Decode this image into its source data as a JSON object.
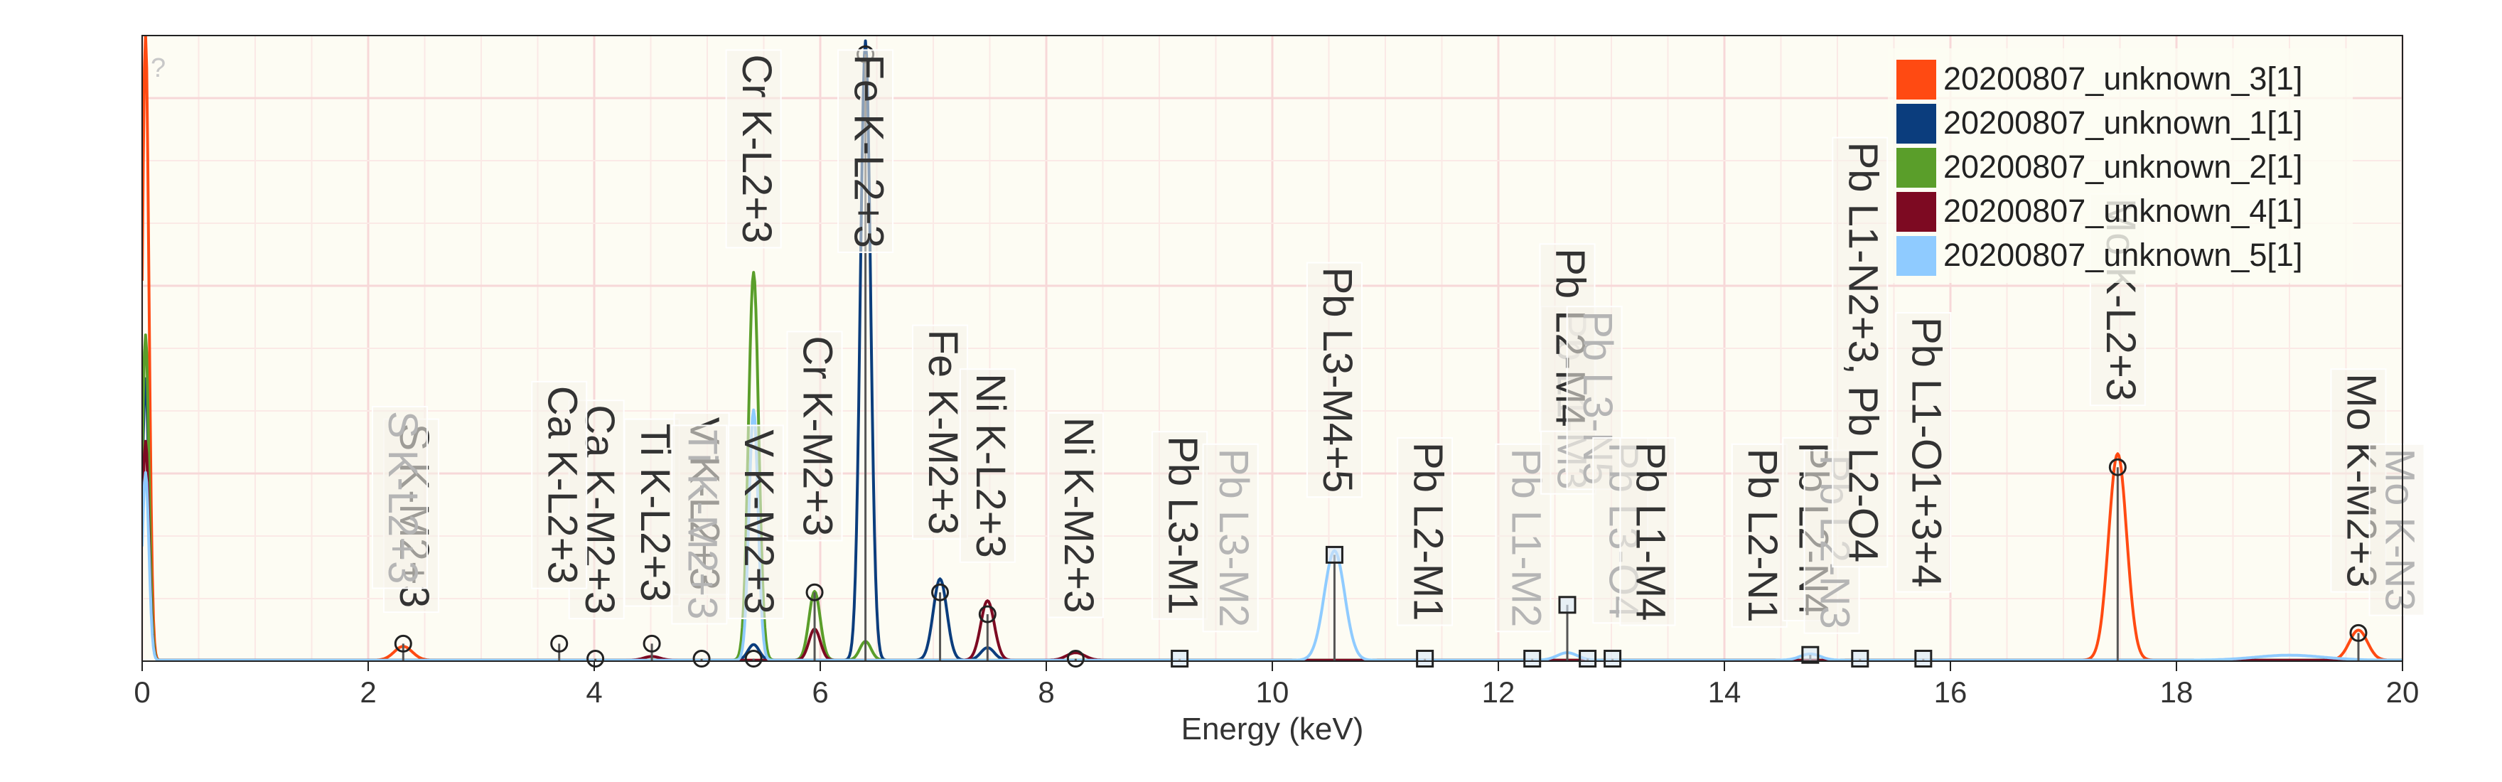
{
  "chart_data": {
    "type": "line",
    "xlabel": "Energy (keV)",
    "ylabel": "",
    "xlim": [
      0,
      20
    ],
    "ylim": [
      0,
      1
    ],
    "x_ticks": [
      0,
      2,
      4,
      6,
      8,
      10,
      12,
      14,
      16,
      18,
      20
    ],
    "grid": true,
    "legend_position": "top-right",
    "help_glyph": "?",
    "series": [
      {
        "name": "20200807_unknown_3[1]",
        "color": "#ff4a12",
        "peaks": [
          {
            "e": 0.03,
            "h": 1.0,
            "w": 0.03
          },
          {
            "e": 2.31,
            "h": 0.022,
            "w": 0.08
          },
          {
            "e": 17.48,
            "h": 0.33,
            "w": 0.08
          },
          {
            "e": 19.61,
            "h": 0.048,
            "w": 0.08
          }
        ]
      },
      {
        "name": "20200807_unknown_1[1]",
        "color": "#0b3d7d",
        "peaks": [
          {
            "e": 0.03,
            "h": 0.45,
            "w": 0.03
          },
          {
            "e": 6.4,
            "h": 0.99,
            "w": 0.045
          },
          {
            "e": 7.06,
            "h": 0.13,
            "w": 0.06
          },
          {
            "e": 7.48,
            "h": 0.02,
            "w": 0.06
          },
          {
            "e": 5.41,
            "h": 0.025,
            "w": 0.05
          }
        ]
      },
      {
        "name": "20200807_unknown_2[1]",
        "color": "#5a9e2a",
        "peaks": [
          {
            "e": 0.03,
            "h": 0.52,
            "w": 0.03
          },
          {
            "e": 5.41,
            "h": 0.62,
            "w": 0.045
          },
          {
            "e": 5.95,
            "h": 0.11,
            "w": 0.05
          },
          {
            "e": 6.4,
            "h": 0.03,
            "w": 0.05
          }
        ]
      },
      {
        "name": "20200807_unknown_4[1]",
        "color": "#7d0a22",
        "peaks": [
          {
            "e": 0.03,
            "h": 0.35,
            "w": 0.03
          },
          {
            "e": 7.48,
            "h": 0.095,
            "w": 0.06
          },
          {
            "e": 8.26,
            "h": 0.012,
            "w": 0.08
          },
          {
            "e": 5.95,
            "h": 0.05,
            "w": 0.05
          },
          {
            "e": 4.51,
            "h": 0.006,
            "w": 0.07
          }
        ]
      },
      {
        "name": "20200807_unknown_5[1]",
        "color": "#8fcbff",
        "peaks": [
          {
            "e": 0.03,
            "h": 0.3,
            "w": 0.03
          },
          {
            "e": 10.55,
            "h": 0.175,
            "w": 0.09
          },
          {
            "e": 12.61,
            "h": 0.012,
            "w": 0.09
          },
          {
            "e": 14.76,
            "h": 0.01,
            "w": 0.09
          },
          {
            "e": 5.41,
            "h": 0.4,
            "w": 0.04
          },
          {
            "e": 19.0,
            "h": 0.008,
            "w": 0.3
          }
        ]
      }
    ],
    "markers": [
      {
        "e": 2.31,
        "y": 0.028,
        "shape": "circle"
      },
      {
        "e": 3.69,
        "y": 0.028,
        "shape": "circle"
      },
      {
        "e": 4.01,
        "y": 0.004,
        "shape": "circle"
      },
      {
        "e": 4.51,
        "y": 0.028,
        "shape": "circle"
      },
      {
        "e": 4.95,
        "y": 0.004,
        "shape": "circle"
      },
      {
        "e": 5.41,
        "y": 0.004,
        "shape": "circle"
      },
      {
        "e": 5.95,
        "y": 0.11,
        "shape": "circle"
      },
      {
        "e": 6.4,
        "y": 0.97,
        "shape": "circle"
      },
      {
        "e": 7.06,
        "y": 0.11,
        "shape": "circle"
      },
      {
        "e": 7.48,
        "y": 0.075,
        "shape": "circle"
      },
      {
        "e": 8.26,
        "y": 0.004,
        "shape": "circle"
      },
      {
        "e": 9.18,
        "y": 0.004,
        "shape": "square"
      },
      {
        "e": 10.55,
        "y": 0.17,
        "shape": "square"
      },
      {
        "e": 11.35,
        "y": 0.004,
        "shape": "square"
      },
      {
        "e": 12.3,
        "y": 0.004,
        "shape": "square"
      },
      {
        "e": 12.61,
        "y": 0.09,
        "shape": "square"
      },
      {
        "e": 12.79,
        "y": 0.004,
        "shape": "square"
      },
      {
        "e": 13.01,
        "y": 0.004,
        "shape": "square"
      },
      {
        "e": 14.76,
        "y": 0.01,
        "shape": "square"
      },
      {
        "e": 15.2,
        "y": 0.004,
        "shape": "square"
      },
      {
        "e": 15.76,
        "y": 0.004,
        "shape": "square"
      },
      {
        "e": 17.48,
        "y": 0.31,
        "shape": "circle"
      },
      {
        "e": 19.61,
        "y": 0.045,
        "shape": "circle"
      }
    ],
    "annotations": [
      {
        "text": "S K-M2+3",
        "e": 2.38,
        "y_top": 0.38,
        "ghost": false
      },
      {
        "text": "S K-L2+3",
        "e": 2.28,
        "y_top": 0.4,
        "ghost": true
      },
      {
        "text": "Ca K-M2+3",
        "e": 4.02,
        "y_top": 0.41,
        "ghost": false
      },
      {
        "text": "Ca K-L2+3",
        "e": 3.69,
        "y_top": 0.44,
        "ghost": false
      },
      {
        "text": "Ti K-L2+3",
        "e": 4.51,
        "y_top": 0.38,
        "ghost": false
      },
      {
        "text": "V K-L2+3",
        "e": 4.95,
        "y_top": 0.39,
        "ghost": false
      },
      {
        "text": "Ti K-M2+3",
        "e": 4.93,
        "y_top": 0.37,
        "ghost": true
      },
      {
        "text": "V K-M2+3",
        "e": 5.43,
        "y_top": 0.37,
        "ghost": false
      },
      {
        "text": "Cr K-L2+3",
        "e": 5.41,
        "y_top": 0.97,
        "ghost": false
      },
      {
        "text": "Cr K-M2+3",
        "e": 5.95,
        "y_top": 0.52,
        "ghost": false
      },
      {
        "text": "Fe K-L2+3",
        "e": 6.4,
        "y_top": 0.97,
        "ghost": false
      },
      {
        "text": "Fe K-M2+3",
        "e": 7.06,
        "y_top": 0.53,
        "ghost": false
      },
      {
        "text": "Ni K-L2+3",
        "e": 7.48,
        "y_top": 0.46,
        "ghost": false
      },
      {
        "text": "Ni K-M2+3",
        "e": 8.26,
        "y_top": 0.39,
        "ghost": false
      },
      {
        "text": "Pb L3-M1",
        "e": 9.18,
        "y_top": 0.36,
        "ghost": false
      },
      {
        "text": "Pb L3-M2",
        "e": 9.63,
        "y_top": 0.34,
        "ghost": true
      },
      {
        "text": "Pb L3-M4+5",
        "e": 10.55,
        "y_top": 0.63,
        "ghost": false
      },
      {
        "text": "Pb L2-M1",
        "e": 11.35,
        "y_top": 0.35,
        "ghost": false
      },
      {
        "text": "Pb L1-M2",
        "e": 12.22,
        "y_top": 0.34,
        "ghost": true
      },
      {
        "text": "Pb L1-M3",
        "e": 12.62,
        "y_top": 0.56,
        "ghost": true
      },
      {
        "text": "Pb L2-M4",
        "e": 12.61,
        "y_top": 0.66,
        "ghost": false
      },
      {
        "text": "Pb L3-N5",
        "e": 12.85,
        "y_top": 0.56,
        "ghost": true
      },
      {
        "text": "Pb L3-O4",
        "e": 13.08,
        "y_top": 0.35,
        "ghost": true
      },
      {
        "text": "Pb L1-M4",
        "e": 13.32,
        "y_top": 0.35,
        "ghost": false
      },
      {
        "text": "Pb L2-N1",
        "e": 14.31,
        "y_top": 0.34,
        "ghost": false
      },
      {
        "text": "Pb L2-N4",
        "e": 14.76,
        "y_top": 0.35,
        "ghost": false
      },
      {
        "text": "Pb L2-N3",
        "e": 14.95,
        "y_top": 0.33,
        "ghost": true
      },
      {
        "text": "Pb L1-N2+3, Pb L2-O4",
        "e": 15.2,
        "y_top": 0.83,
        "ghost": false
      },
      {
        "text": "Pb L1-O1+3+4",
        "e": 15.76,
        "y_top": 0.55,
        "ghost": false
      },
      {
        "text": "Mo K-L2+3",
        "e": 17.48,
        "y_top": 0.74,
        "ghost": false
      },
      {
        "text": "Mo K-M2+3",
        "e": 19.61,
        "y_top": 0.46,
        "ghost": false
      },
      {
        "text": "Mo K-N3",
        "e": 19.95,
        "y_top": 0.34,
        "ghost": true
      }
    ]
  }
}
